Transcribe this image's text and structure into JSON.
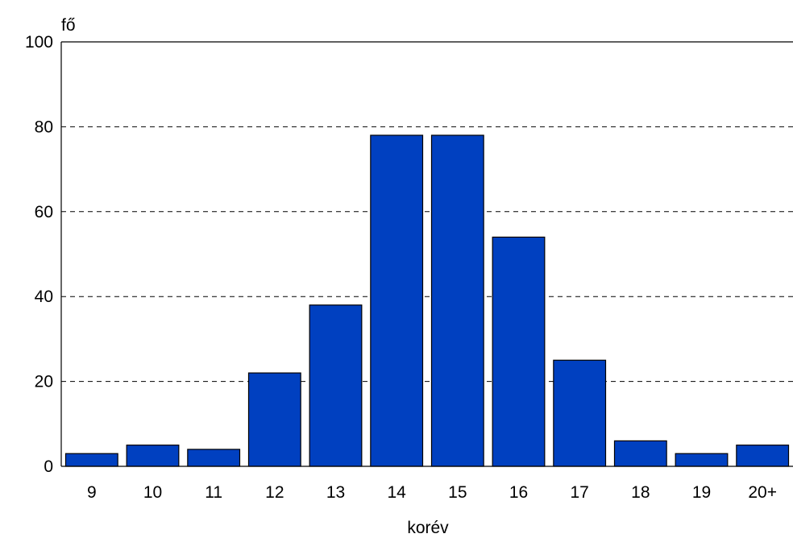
{
  "chart_data": {
    "type": "bar",
    "title": "",
    "xlabel": "korév",
    "ylabel": "fő",
    "categories": [
      "9",
      "10",
      "11",
      "12",
      "13",
      "14",
      "15",
      "16",
      "17",
      "18",
      "19",
      "20+"
    ],
    "values": [
      3,
      5,
      4,
      22,
      38,
      78,
      78,
      54,
      25,
      6,
      3,
      5
    ],
    "ylim": [
      0,
      100
    ],
    "yticks": [
      0,
      20,
      40,
      60,
      80,
      100
    ],
    "grid": "horizontal-dashed",
    "legend": "none",
    "colors": {
      "bar_fill": "#0040c0",
      "bar_stroke": "#000000",
      "grid": "#000000"
    }
  }
}
